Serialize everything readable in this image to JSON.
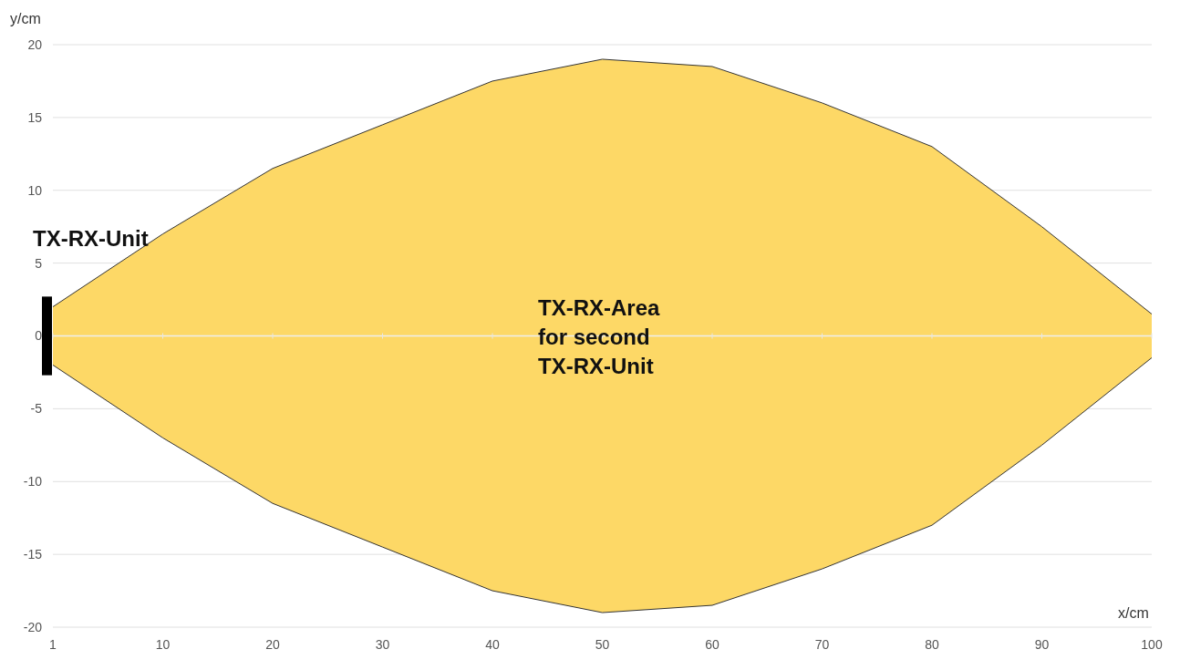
{
  "chart_data": {
    "type": "area",
    "xlabel": "x/cm",
    "ylabel": "y/cm",
    "categories": [
      "1",
      "10",
      "20",
      "30",
      "40",
      "50",
      "60",
      "70",
      "80",
      "90",
      "100"
    ],
    "series": [
      {
        "color": "#fdd866",
        "values": [
          2,
          7,
          11.5,
          14.5,
          17.5,
          19,
          18.5,
          16,
          13,
          7.5,
          1.5
        ]
      },
      {
        "color": "#fdd866",
        "values": [
          -2,
          -7,
          -11.5,
          -14.5,
          -17.5,
          -19,
          -18.5,
          -16,
          -13,
          -7.5,
          -1.5
        ]
      }
    ],
    "ylim": [
      -20,
      20
    ],
    "yticks": [
      -20,
      -15,
      -10,
      -5,
      0,
      5,
      10,
      15,
      20
    ],
    "grid": "y",
    "annotations": [
      "TX-RX-Unit",
      "TX-RX-Area\nfor second\nTX-RX-Unit"
    ]
  }
}
